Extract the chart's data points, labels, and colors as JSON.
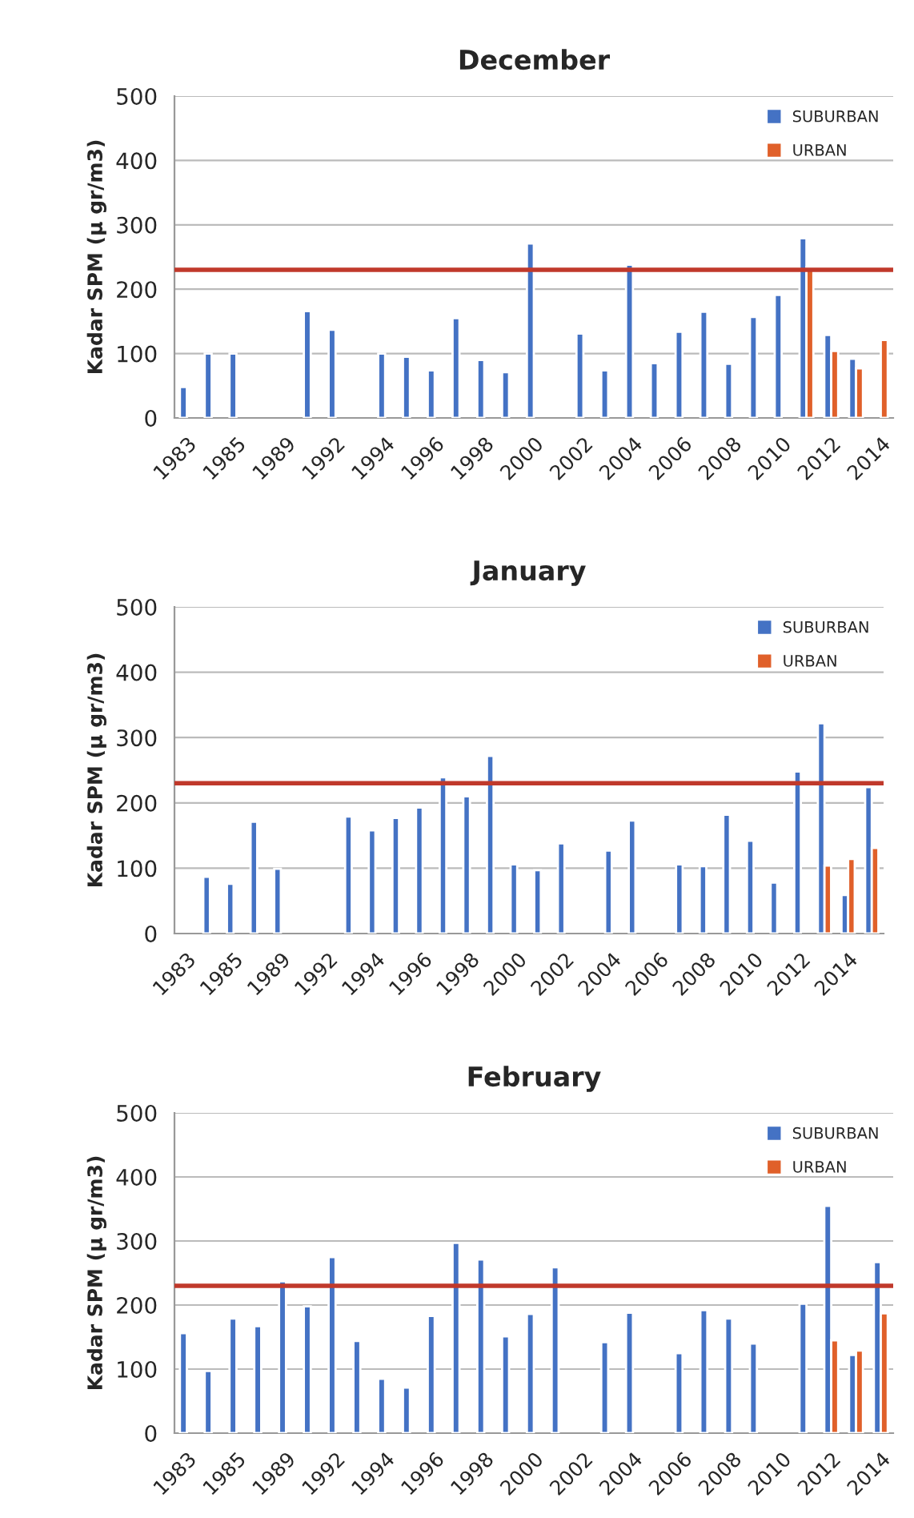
{
  "chart_data": [
    {
      "type": "bar",
      "title": "December",
      "ylabel": "Kadar SPM (μ gr/m3)",
      "ylim": [
        0,
        500
      ],
      "yticks": [
        0,
        100,
        200,
        300,
        400,
        500
      ],
      "grid": "y",
      "legend": "top right",
      "categories": [
        "1983",
        null,
        "1985",
        null,
        "1989",
        null,
        "1992",
        null,
        "1994",
        null,
        "1996",
        null,
        "1998",
        null,
        "2000",
        null,
        "2002",
        null,
        "2004",
        null,
        "2006",
        null,
        "2008",
        null,
        "2010",
        null,
        "2012",
        null,
        "2014"
      ],
      "series": [
        {
          "name": "SUBURBAN",
          "color": "#4472c4",
          "values": [
            48,
            100,
            100,
            null,
            null,
            166,
            137,
            null,
            100,
            95,
            74,
            155,
            90,
            71,
            271,
            null,
            131,
            74,
            238,
            85,
            134,
            165,
            84,
            157,
            191,
            279,
            129,
            92,
            null
          ]
        },
        {
          "name": "URBAN",
          "color": "#e0602a",
          "values": [
            null,
            null,
            null,
            null,
            null,
            null,
            null,
            null,
            null,
            null,
            null,
            null,
            null,
            null,
            null,
            null,
            null,
            null,
            null,
            null,
            null,
            null,
            null,
            null,
            null,
            234,
            104,
            77,
            121
          ]
        }
      ],
      "ref_lines": [
        {
          "axis": "y",
          "value": 230,
          "color": "#c0392b"
        }
      ]
    },
    {
      "type": "bar",
      "title": "January",
      "ylabel": "Kadar SPM (μ gr/m3)",
      "ylim": [
        0,
        500
      ],
      "yticks": [
        0,
        100,
        200,
        300,
        400,
        500
      ],
      "grid": "y",
      "legend": "top right",
      "categories": [
        "1983",
        null,
        "1985",
        null,
        "1989",
        null,
        "1992",
        null,
        "1994",
        null,
        "1996",
        null,
        "1998",
        null,
        "2000",
        null,
        "2002",
        null,
        "2004",
        null,
        "2006",
        null,
        "2008",
        null,
        "2010",
        null,
        "2012",
        null,
        "2014",
        null
      ],
      "series": [
        {
          "name": "SUBURBAN",
          "color": "#4472c4",
          "values": [
            null,
            87,
            76,
            171,
            99,
            null,
            null,
            179,
            158,
            177,
            193,
            239,
            210,
            272,
            106,
            97,
            138,
            null,
            127,
            173,
            null,
            106,
            103,
            182,
            142,
            78,
            248,
            322,
            59,
            224
          ]
        },
        {
          "name": "URBAN",
          "color": "#e0602a",
          "values": [
            null,
            null,
            null,
            null,
            null,
            null,
            null,
            null,
            null,
            null,
            null,
            null,
            null,
            null,
            null,
            null,
            null,
            null,
            null,
            null,
            null,
            null,
            null,
            null,
            null,
            null,
            null,
            104,
            114,
            131
          ]
        }
      ],
      "ref_lines": [
        {
          "axis": "y",
          "value": 230,
          "color": "#c0392b"
        }
      ]
    },
    {
      "type": "bar",
      "title": "February",
      "ylabel": "Kadar SPM (μ gr/m3)",
      "ylim": [
        0,
        500
      ],
      "yticks": [
        0,
        100,
        200,
        300,
        400,
        500
      ],
      "grid": "y",
      "legend": "top right",
      "categories": [
        "1983",
        null,
        "1985",
        null,
        "1989",
        null,
        "1992",
        null,
        "1994",
        null,
        "1996",
        null,
        "1998",
        null,
        "2000",
        null,
        "2002",
        null,
        "2004",
        null,
        "2006",
        null,
        "2008",
        null,
        "2010",
        null,
        "2012",
        null,
        "2014"
      ],
      "series": [
        {
          "name": "SUBURBAN",
          "color": "#4472c4",
          "values": [
            156,
            97,
            179,
            167,
            237,
            198,
            275,
            144,
            85,
            71,
            183,
            297,
            271,
            151,
            186,
            259,
            null,
            142,
            188,
            null,
            125,
            192,
            179,
            140,
            null,
            202,
            355,
            122,
            267
          ]
        },
        {
          "name": "URBAN",
          "color": "#e0602a",
          "values": [
            null,
            null,
            null,
            null,
            null,
            null,
            null,
            null,
            null,
            null,
            null,
            null,
            null,
            null,
            null,
            null,
            null,
            null,
            null,
            null,
            null,
            null,
            null,
            null,
            null,
            null,
            145,
            129,
            187
          ]
        }
      ],
      "ref_lines": [
        {
          "axis": "y",
          "value": 230,
          "color": "#c0392b"
        }
      ]
    }
  ]
}
